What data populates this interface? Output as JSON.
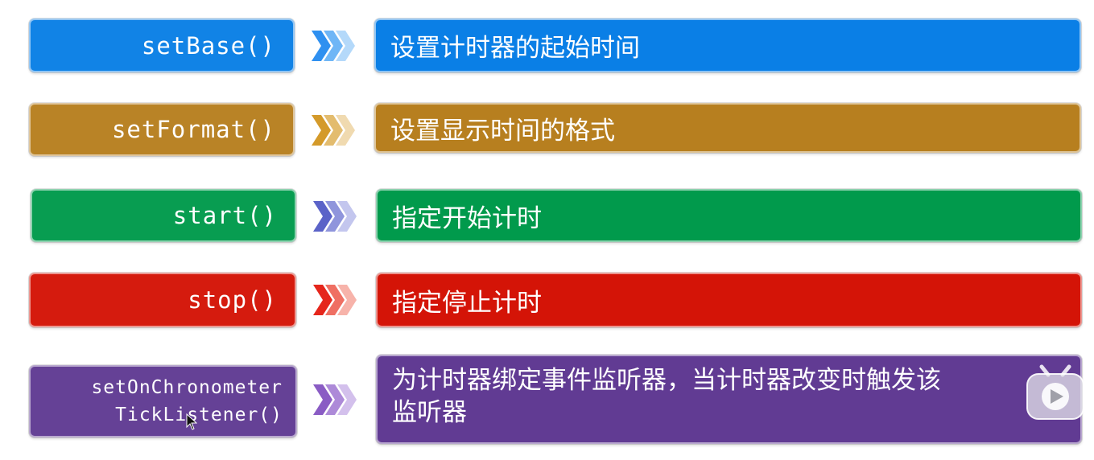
{
  "rows": [
    {
      "method": "setBase()",
      "description": "设置计时器的起始时间",
      "color": "#0a7fe6",
      "arrow_colors": [
        "#2f90f0",
        "#6fb6f6",
        "#b4d9fa"
      ]
    },
    {
      "method": "setFormat()",
      "description": "设置显示时间的格式",
      "color": "#b77f1f",
      "arrow_colors": [
        "#d49a2a",
        "#e3bc6e",
        "#f0dab0"
      ]
    },
    {
      "method": "start()",
      "description": "指定开始计时",
      "color": "#019a4c",
      "arrow_colors": [
        "#5b63c8",
        "#8f95dc",
        "#c3c6ee"
      ]
    },
    {
      "method": "stop()",
      "description": "指定停止计时",
      "color": "#d41407",
      "arrow_colors": [
        "#e5261c",
        "#ef6f63",
        "#f7b3aa"
      ]
    },
    {
      "method_lines": [
        "setOnChronometer",
        "TickListener()"
      ],
      "description_lines": [
        "为计时器绑定事件监听器，当计时器改变时触发该",
        "监听器"
      ],
      "color": "#613b93",
      "arrow_colors": [
        "#8a5cc4",
        "#ad8ad8",
        "#d3c0ec"
      ]
    }
  ],
  "icons": {
    "watermark": "bilibili-play-icon",
    "cursor": "mouse-pointer-icon"
  }
}
